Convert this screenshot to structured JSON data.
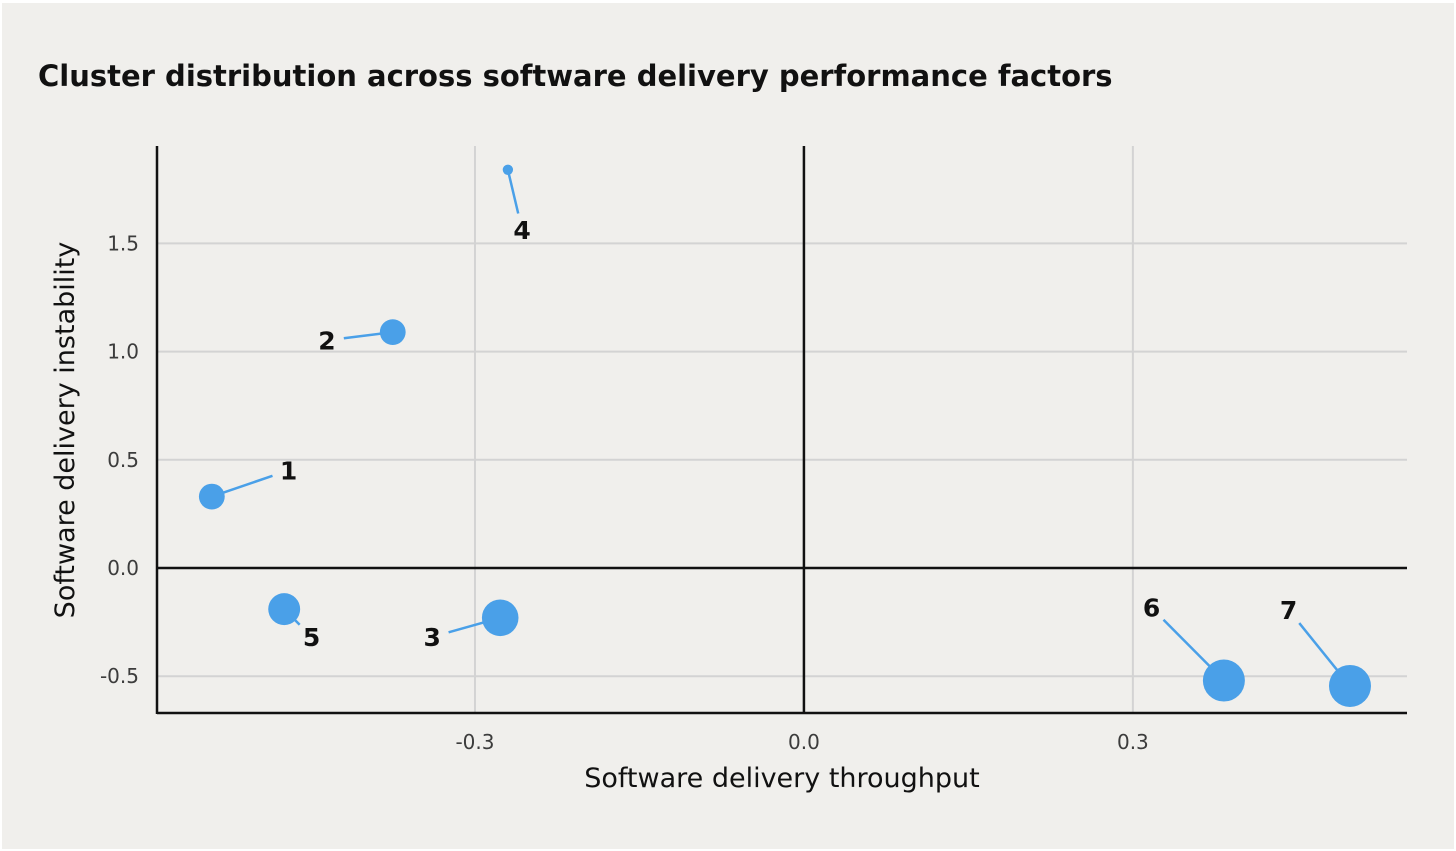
{
  "chart_data": {
    "type": "scatter",
    "title": "Cluster distribution across software delivery performance factors",
    "xlabel": "Software delivery throughput",
    "ylabel": "Software delivery instability",
    "xlim": [
      -0.59,
      0.55
    ],
    "ylim": [
      -0.67,
      1.95
    ],
    "xticks": [
      {
        "value": -0.3,
        "label": "-0.3"
      },
      {
        "value": 0.0,
        "label": "0.0"
      },
      {
        "value": 0.3,
        "label": "0.3"
      }
    ],
    "yticks": [
      {
        "value": -0.5,
        "label": "-0.5"
      },
      {
        "value": 0.0,
        "label": "0.0"
      },
      {
        "value": 0.5,
        "label": "0.5"
      },
      {
        "value": 1.0,
        "label": "1.0"
      },
      {
        "value": 1.5,
        "label": "1.5"
      }
    ],
    "grid": true,
    "marker_color": "#4aa0e8",
    "points": [
      {
        "label": "1",
        "x": -0.54,
        "y": 0.33,
        "size": 0.55,
        "label_x": -0.47,
        "label_y": 0.41
      },
      {
        "label": "2",
        "x": -0.375,
        "y": 1.09,
        "size": 0.55,
        "label_x": -0.435,
        "label_y": 1.01
      },
      {
        "label": "3",
        "x": -0.277,
        "y": -0.23,
        "size": 0.85,
        "label_x": -0.339,
        "label_y": -0.36
      },
      {
        "label": "4",
        "x": -0.27,
        "y": 1.84,
        "size": 0.12,
        "label_x": -0.257,
        "label_y": 1.52
      },
      {
        "label": "5",
        "x": -0.474,
        "y": -0.19,
        "size": 0.72,
        "label_x": -0.449,
        "label_y": -0.36
      },
      {
        "label": "6",
        "x": 0.383,
        "y": -0.52,
        "size": 1.0,
        "label_x": 0.317,
        "label_y": -0.225
      },
      {
        "label": "7",
        "x": 0.498,
        "y": -0.545,
        "size": 1.0,
        "label_x": 0.442,
        "label_y": -0.235
      }
    ]
  }
}
